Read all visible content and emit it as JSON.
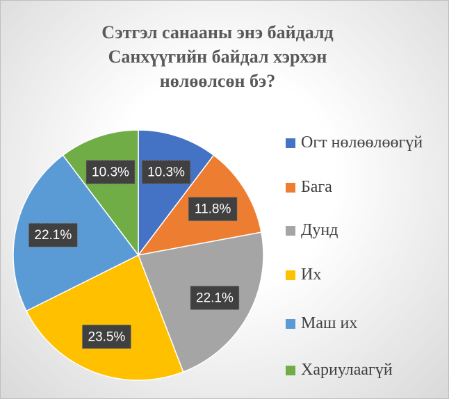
{
  "chart_data": {
    "type": "pie",
    "title": "Сэтгэл санааны энэ байдалд Санхүүгийн байдал хэрхэн нөлөөлсөн бэ?",
    "categories": [
      "Огт нөлөөлөөгүй",
      "Бага",
      "Дунд",
      "Их",
      "Маш их",
      "Хариулаагүй"
    ],
    "values": [
      10.3,
      11.8,
      22.1,
      23.5,
      22.1,
      10.3
    ],
    "value_labels": [
      "10.3%",
      "11.8%",
      "22.1%",
      "23.5%",
      "22.1%",
      "10.3%"
    ],
    "colors": [
      "#4472c4",
      "#ed7d31",
      "#a5a5a5",
      "#ffc000",
      "#5b9bd5",
      "#70ad47"
    ],
    "legend": "right"
  }
}
